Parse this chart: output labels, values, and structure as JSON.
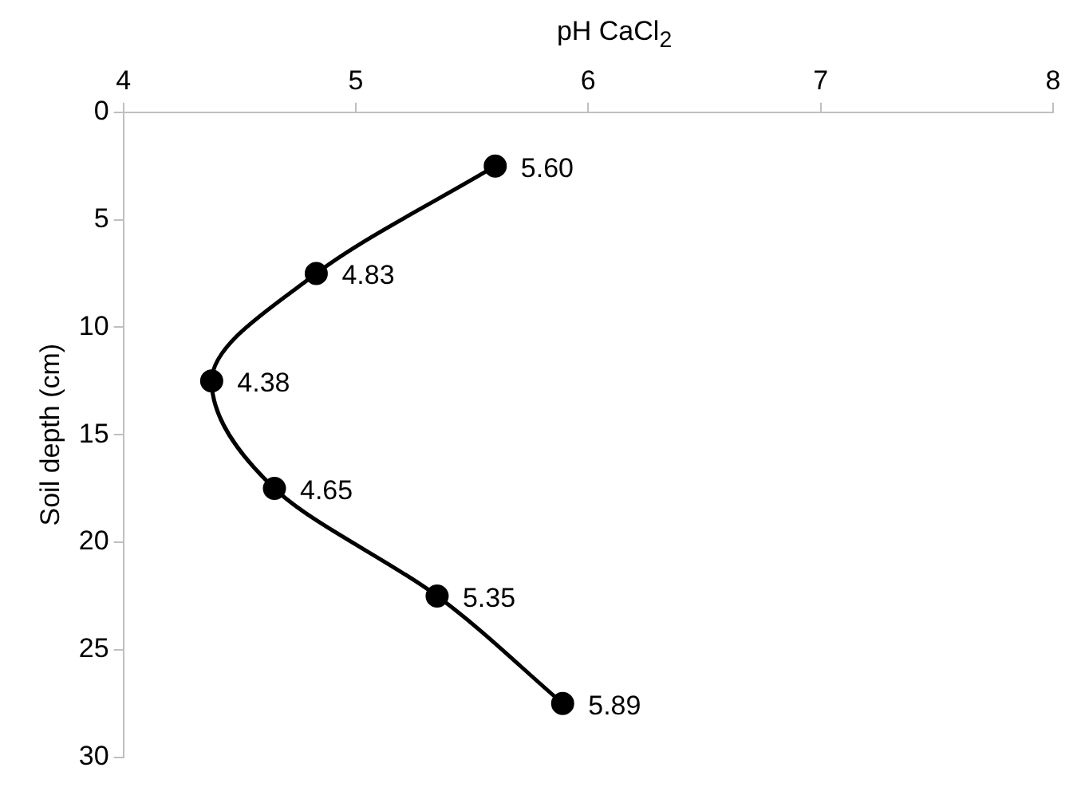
{
  "chart_data": {
    "type": "line",
    "orientation": "horizontal",
    "xlabel": "pH CaCl$_{2}$",
    "ylabel": "Soil depth (cm)",
    "x": [
      2.5,
      7.5,
      12.5,
      17.5,
      22.5,
      27.5
    ],
    "values": [
      5.6,
      4.83,
      4.38,
      4.65,
      5.35,
      5.89
    ],
    "value_labels": [
      "5.60",
      "4.83",
      "4.38",
      "4.65",
      "5.35",
      "5.89"
    ],
    "color": "#000000",
    "marker": "circle",
    "line_style": "solid",
    "xlim": [
      4,
      8
    ],
    "xticks": [
      4,
      5,
      6,
      7,
      8
    ],
    "ylim": [
      30,
      0
    ],
    "yticks": [
      0,
      5,
      10,
      15,
      20,
      25,
      30
    ],
    "grid": false,
    "legend": false
  }
}
